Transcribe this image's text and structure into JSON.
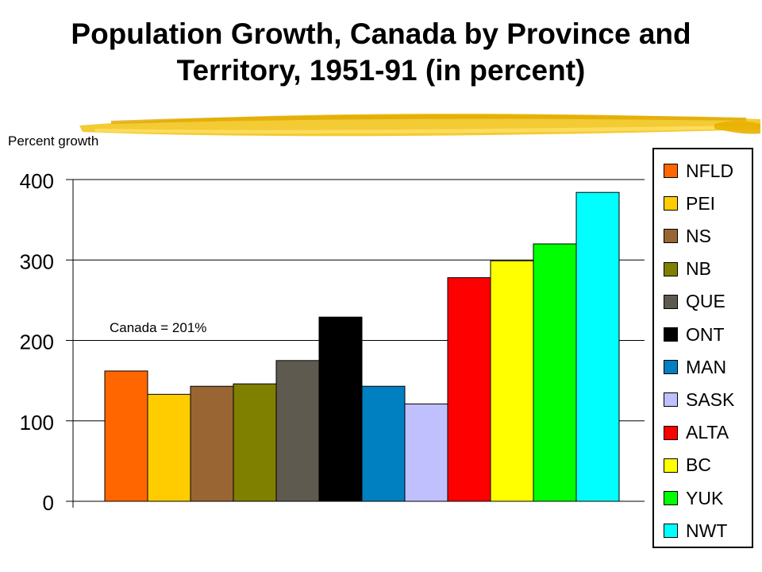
{
  "title_lines": [
    "Population Growth, Canada by Province and",
    "Territory, 1951-91 (in percent)"
  ],
  "chart_data": {
    "type": "bar",
    "title": "Population Growth, Canada by Province and Territory, 1951-91 (in percent)",
    "ylabel": "Percent growth",
    "xlabel": "",
    "ylim": [
      0,
      400
    ],
    "yticks": [
      0,
      100,
      200,
      300,
      400
    ],
    "grid": true,
    "legend_position": "right",
    "annotation": "Canada = 201%",
    "categories": [
      "NFLD",
      "PEI",
      "NS",
      "NB",
      "QUE",
      "ONT",
      "MAN",
      "SASK",
      "ALTA",
      "BC",
      "YUK",
      "NWT"
    ],
    "values": [
      162,
      133,
      143,
      146,
      175,
      229,
      143,
      121,
      278,
      299,
      320,
      384
    ],
    "colors": [
      "#FF6600",
      "#FFCC00",
      "#996633",
      "#808000",
      "#5F5A50",
      "#000000",
      "#0080C0",
      "#C0C0FF",
      "#FF0000",
      "#FFFF00",
      "#00FF00",
      "#00FFFF"
    ]
  }
}
